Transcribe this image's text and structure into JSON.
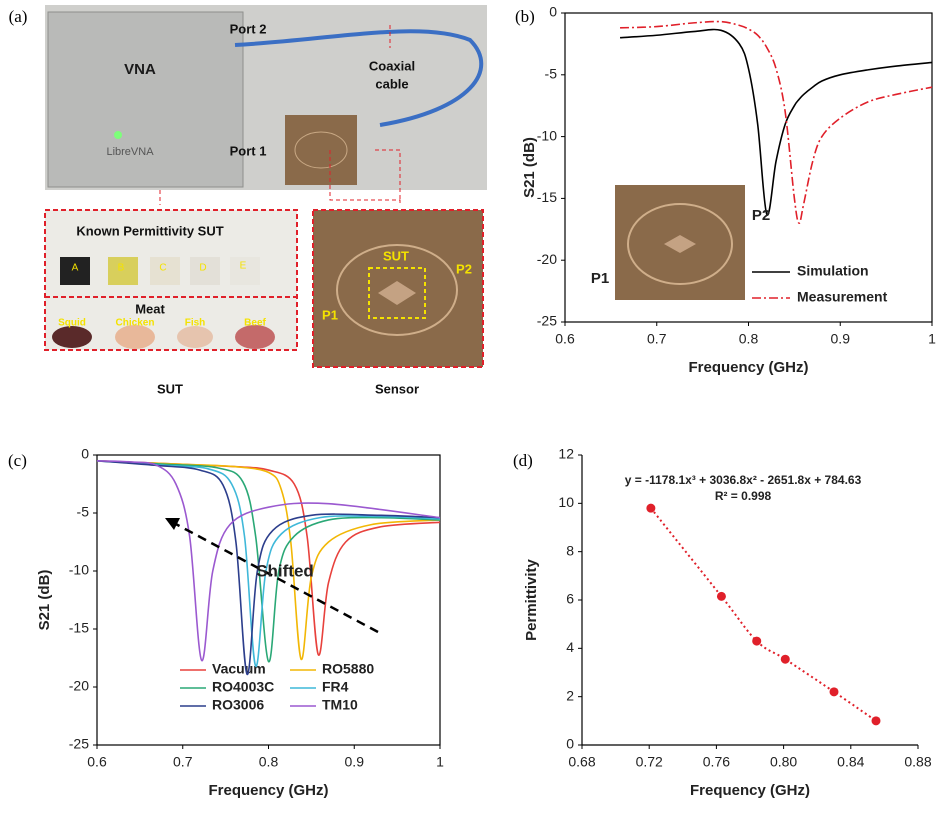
{
  "figure_a": {
    "label": "(a)",
    "vna": "VNA",
    "brand": "LibreVNA",
    "port2": "Port 2",
    "coaxial_cable": [
      "Coaxial",
      "cable"
    ],
    "port1": "Port 1",
    "known_sut": "Known Permittivity SUT",
    "samples": [
      "A",
      "B",
      "C",
      "D",
      "E"
    ],
    "meat": "Meat",
    "meats": [
      "Squid",
      "Chicken",
      "Fish",
      "Beef"
    ],
    "sut_caption": "SUT",
    "sensor_sut": "SUT",
    "sensor_ports": [
      "P1",
      "P2"
    ],
    "sensor_caption": "Sensor"
  },
  "chart_data": [
    {
      "type": "line",
      "panel_label": "(b)",
      "xlabel": "Frequency (GHz)",
      "ylabel": "S21 (dB)",
      "x": [
        0.66,
        0.7,
        0.74,
        0.77,
        0.79,
        0.8,
        0.81,
        0.82,
        0.83,
        0.84,
        0.85,
        0.855,
        0.86,
        0.87,
        0.88,
        0.9,
        0.93,
        0.96,
        1.0
      ],
      "series": [
        {
          "name": "Simulation",
          "color": "#000000",
          "line_style": "solid",
          "values": [
            -2.0,
            -1.8,
            -1.5,
            -1.4,
            -2.5,
            -4.5,
            -9,
            -16.3,
            -12,
            -9,
            -7.5,
            -7,
            -6.6,
            -6,
            -5.5,
            -5,
            -4.6,
            -4.3,
            -4.0
          ]
        },
        {
          "name": "Measurement",
          "color": "#e0202a",
          "line_style": "dashdot",
          "values": [
            -1.2,
            -1.1,
            -0.8,
            -0.7,
            -1.0,
            -1.3,
            -1.8,
            -2.8,
            -4.5,
            -8,
            -15,
            -17,
            -15.5,
            -12,
            -10,
            -8.5,
            -7.2,
            -6.6,
            -6.0
          ]
        }
      ],
      "xlim": [
        0.6,
        1
      ],
      "xticks": [
        0.6,
        0.7,
        0.8,
        0.9,
        1
      ],
      "ylim": [
        -25,
        0
      ],
      "yticks": [
        -25,
        -20,
        -15,
        -10,
        -5,
        0
      ],
      "inset_labels": [
        "P1",
        "P2"
      ]
    },
    {
      "type": "line",
      "panel_label": "(c)",
      "xlabel": "Frequency (GHz)",
      "ylabel": "S21 (dB)",
      "series": [
        {
          "name": "Vacuum",
          "color": "#e8413c",
          "line_style": "solid",
          "x": [
            0.6,
            0.7,
            0.76,
            0.8,
            0.83,
            0.845,
            0.858,
            0.87,
            0.89,
            0.93,
            1.0
          ],
          "values": [
            -0.5,
            -0.8,
            -1.0,
            -1.3,
            -2.5,
            -7,
            -17.2,
            -11,
            -7.5,
            -6.2,
            -5.8
          ]
        },
        {
          "name": "RO5880",
          "color": "#f2b705",
          "line_style": "solid",
          "x": [
            0.6,
            0.7,
            0.76,
            0.8,
            0.815,
            0.826,
            0.838,
            0.85,
            0.87,
            0.92,
            1.0
          ],
          "values": [
            -0.5,
            -0.8,
            -1.0,
            -1.5,
            -3,
            -7.5,
            -17.6,
            -10.5,
            -7.5,
            -6,
            -5.6
          ]
        },
        {
          "name": "RO4003C",
          "color": "#2aa876",
          "line_style": "solid",
          "x": [
            0.6,
            0.68,
            0.74,
            0.77,
            0.785,
            0.8,
            0.812,
            0.83,
            0.87,
            0.93,
            1.0
          ],
          "values": [
            -0.5,
            -0.8,
            -1.1,
            -2.3,
            -7,
            -17.8,
            -10,
            -7,
            -5.6,
            -5.4,
            -5.6
          ]
        },
        {
          "name": "FR4",
          "color": "#3fb8d9",
          "line_style": "solid",
          "x": [
            0.6,
            0.68,
            0.73,
            0.757,
            0.772,
            0.785,
            0.797,
            0.815,
            0.86,
            0.93,
            1.0
          ],
          "values": [
            -0.5,
            -0.9,
            -1.2,
            -2.5,
            -7,
            -18.2,
            -10,
            -6.8,
            -5.4,
            -5.3,
            -5.5
          ]
        },
        {
          "name": "RO3006",
          "color": "#2c3e8c",
          "line_style": "solid",
          "x": [
            0.6,
            0.67,
            0.72,
            0.747,
            0.762,
            0.775,
            0.787,
            0.805,
            0.85,
            0.93,
            1.0
          ],
          "values": [
            -0.5,
            -0.9,
            -1.3,
            -2.6,
            -7.5,
            -18.9,
            -10,
            -6.5,
            -5.2,
            -5.2,
            -5.4
          ]
        },
        {
          "name": "TM10",
          "color": "#9b59d0",
          "line_style": "solid",
          "x": [
            0.6,
            0.64,
            0.67,
            0.692,
            0.708,
            0.722,
            0.735,
            0.755,
            0.8,
            0.87,
            1.0
          ],
          "values": [
            -0.5,
            -0.6,
            -0.9,
            -2.5,
            -7,
            -17.7,
            -10,
            -6,
            -4.5,
            -4.2,
            -5.4
          ]
        }
      ],
      "xlim": [
        0.6,
        1
      ],
      "xticks": [
        0.6,
        0.7,
        0.8,
        0.9,
        1
      ],
      "ylim": [
        -25,
        0
      ],
      "yticks": [
        -25,
        -20,
        -15,
        -10,
        -5,
        0
      ],
      "annotation": "Shifted"
    },
    {
      "type": "scatter",
      "panel_label": "(d)",
      "xlabel": "Frequency (GHz)",
      "ylabel": "Permittivity",
      "color": "#e0202a",
      "trendline": true,
      "x": [
        0.721,
        0.763,
        0.784,
        0.801,
        0.83,
        0.855
      ],
      "values": [
        9.8,
        6.15,
        4.3,
        3.55,
        2.2,
        1.0
      ],
      "xlim": [
        0.68,
        0.88
      ],
      "xticks": [
        0.68,
        0.72,
        0.76,
        {
          "value": 0.8,
          "label": "0.80"
        },
        0.84,
        0.88
      ],
      "ylim": [
        0,
        12
      ],
      "yticks": [
        0,
        2,
        4,
        6,
        8,
        10,
        12
      ],
      "annotations": [
        "y = -1178.1x³ + 3036.8x² - 2651.8x + 784.63",
        "R² = 0.998"
      ]
    }
  ]
}
